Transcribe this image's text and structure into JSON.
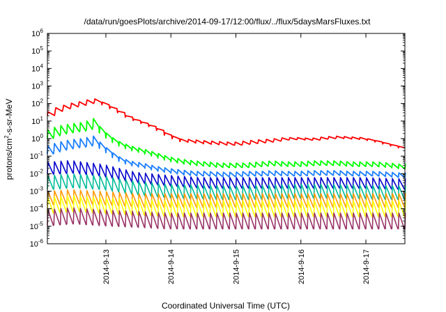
{
  "chart_data": {
    "type": "line",
    "title": "/data/run/goesPlots/archive/2014-09-17/12:00/flux/../flux/5daysMarsFluxes.txt",
    "xlabel": "Coordinated Universal Time (UTC)",
    "ylabel_main": "protons/cm",
    "ylabel_sup": "2",
    "ylabel_rest": "-s-sr-MeV",
    "y_scale": "log",
    "ylim_exp": [
      -6,
      6
    ],
    "y_tick_base": "10",
    "y_tick_exponents": [
      "-6",
      "-5",
      "-4",
      "-3",
      "-2",
      "-1",
      "0",
      "1",
      "2",
      "3",
      "4",
      "5",
      "6"
    ],
    "xlim_days": [
      12.1,
      17.6
    ],
    "x_tick_labels": [
      {
        "label": "2014-9-13",
        "day": 13
      },
      {
        "label": "2014-9-14",
        "day": 14
      },
      {
        "label": "2014-9-15",
        "day": 15
      },
      {
        "label": "2014-9-16",
        "day": 16
      },
      {
        "label": "2014-9-17",
        "day": 17
      }
    ],
    "grid": false,
    "legend": "none",
    "series": [
      {
        "color": "#ff0000",
        "x": [
          12.1,
          12.3,
          12.5,
          12.7,
          12.85,
          13.0,
          13.2,
          13.4,
          13.6,
          13.8,
          14.0,
          14.2,
          14.4,
          14.6,
          14.8,
          15.0,
          15.2,
          15.4,
          15.6,
          15.8,
          16.0,
          16.2,
          16.4,
          16.6,
          16.8,
          17.0,
          17.2,
          17.4,
          17.6
        ],
        "y": [
          20,
          50,
          80,
          110,
          160,
          100,
          40,
          15,
          8,
          4,
          1.5,
          0.8,
          0.7,
          0.6,
          0.55,
          0.5,
          0.6,
          0.7,
          0.8,
          1.0,
          1.0,
          0.9,
          1.1,
          1.2,
          1.1,
          1.0,
          0.7,
          0.45,
          0.3
        ],
        "saw_amp": [
          1.6,
          1.6,
          1.6,
          1.6,
          1.6,
          1.4,
          1.2,
          1.2,
          1.2,
          1.2,
          1.4,
          1.4,
          1.5,
          1.5,
          1.5,
          1.5,
          1.5,
          1.5,
          1.4,
          1.3,
          1.3,
          1.3,
          1.3,
          1.3,
          1.3,
          1.3,
          1.2,
          1.2,
          1.2
        ],
        "saw_step": 0.12
      },
      {
        "color": "#00ff00",
        "x": [
          12.1,
          12.3,
          12.5,
          12.7,
          12.85,
          13.0,
          13.2,
          13.4,
          13.6,
          13.8,
          14.0,
          14.2,
          14.4,
          14.6,
          14.8,
          15.0,
          15.2,
          15.4,
          15.6,
          15.8,
          16.0,
          16.2,
          16.4,
          16.6,
          16.8,
          17.0,
          17.2,
          17.4,
          17.6
        ],
        "y": [
          1.5,
          3,
          4,
          5,
          8,
          2,
          0.6,
          0.3,
          0.2,
          0.12,
          0.07,
          0.05,
          0.04,
          0.035,
          0.03,
          0.03,
          0.03,
          0.035,
          0.04,
          0.035,
          0.035,
          0.04,
          0.04,
          0.04,
          0.035,
          0.035,
          0.035,
          0.03,
          0.025
        ],
        "saw_amp": [
          3,
          3,
          3,
          3,
          3,
          2,
          1.8,
          1.8,
          1.8,
          1.8,
          1.8,
          1.8,
          1.8,
          1.8,
          1.8,
          1.8,
          1.8,
          1.8,
          1.8,
          1.8,
          1.8,
          1.8,
          1.8,
          1.8,
          1.8,
          1.8,
          1.8,
          1.8,
          1.8
        ],
        "saw_step": 0.1
      },
      {
        "color": "#1a7fff",
        "x": [
          12.1,
          12.3,
          12.5,
          12.7,
          12.85,
          13.0,
          13.2,
          13.4,
          13.6,
          13.8,
          14.0,
          14.2,
          14.4,
          14.6,
          14.8,
          15.0,
          15.2,
          15.4,
          15.6,
          15.8,
          16.0,
          16.2,
          16.4,
          16.6,
          16.8,
          17.0,
          17.2,
          17.4,
          17.6
        ],
        "y": [
          0.2,
          0.35,
          0.5,
          0.6,
          0.8,
          0.3,
          0.08,
          0.04,
          0.03,
          0.02,
          0.015,
          0.012,
          0.01,
          0.01,
          0.009,
          0.009,
          0.01,
          0.01,
          0.011,
          0.01,
          0.01,
          0.011,
          0.011,
          0.011,
          0.01,
          0.01,
          0.01,
          0.009,
          0.008
        ],
        "saw_amp": [
          3,
          3,
          3,
          3,
          3,
          2,
          1.8,
          1.8,
          1.8,
          1.8,
          1.8,
          1.8,
          1.8,
          1.8,
          1.8,
          1.8,
          1.8,
          1.8,
          1.8,
          1.8,
          1.8,
          1.8,
          1.8,
          1.8,
          1.8,
          1.8,
          1.8,
          1.8,
          1.8
        ],
        "saw_step": 0.1
      },
      {
        "color": "#0000cc",
        "x": [
          12.1,
          12.5,
          13.0,
          13.5,
          14.0,
          14.5,
          15.0,
          15.5,
          16.0,
          16.5,
          17.0,
          17.6
        ],
        "y": [
          0.02,
          0.025,
          0.015,
          0.006,
          0.004,
          0.003,
          0.003,
          0.003,
          0.003,
          0.003,
          0.003,
          0.0025
        ],
        "saw_amp": [
          5,
          5,
          5,
          4,
          4,
          4,
          4,
          4,
          4,
          4,
          4,
          4
        ],
        "saw_step": 0.1
      },
      {
        "color": "#00bb99",
        "x": [
          12.1,
          12.5,
          13.0,
          13.5,
          14.0,
          14.5,
          15.0,
          15.5,
          16.0,
          16.5,
          17.0,
          17.6
        ],
        "y": [
          0.003,
          0.004,
          0.003,
          0.0015,
          0.001,
          0.0009,
          0.0008,
          0.0009,
          0.001,
          0.001,
          0.0009,
          0.0008
        ],
        "saw_amp": [
          6,
          6,
          6,
          6,
          6,
          6,
          6,
          6,
          6,
          6,
          6,
          6
        ],
        "saw_step": 0.1
      },
      {
        "color": "#ff9900",
        "x": [
          12.1,
          12.5,
          13.0,
          13.5,
          14.0,
          14.5,
          15.0,
          15.5,
          16.0,
          16.5,
          17.0,
          17.6
        ],
        "y": [
          0.0004,
          0.0005,
          0.0004,
          0.0003,
          0.0003,
          0.0003,
          0.0003,
          0.0003,
          0.0003,
          0.0003,
          0.0003,
          0.0003
        ],
        "saw_amp": [
          6,
          6,
          6,
          6,
          6,
          6,
          6,
          6,
          6,
          6,
          6,
          6
        ],
        "saw_step": 0.1
      },
      {
        "color": "#ffff00",
        "x": [
          12.1,
          12.5,
          13.0,
          13.5,
          14.0,
          14.5,
          15.0,
          15.5,
          16.0,
          16.5,
          17.0,
          17.6
        ],
        "y": [
          0.00015,
          0.0002,
          0.00015,
          0.00012,
          0.0001,
          0.0001,
          0.0001,
          0.0001,
          0.0001,
          0.0001,
          0.0001,
          0.0001
        ],
        "saw_amp": [
          8,
          8,
          8,
          8,
          8,
          8,
          8,
          8,
          8,
          8,
          8,
          8
        ],
        "saw_step": 0.1
      },
      {
        "color": "#993366",
        "x": [
          12.1,
          12.5,
          13.0,
          13.5,
          14.0,
          14.5,
          15.0,
          15.5,
          16.0,
          16.5,
          17.0,
          17.6
        ],
        "y": [
          3e-05,
          4e-05,
          3e-05,
          2.5e-05,
          2e-05,
          2e-05,
          2e-05,
          2e-05,
          2e-05,
          2e-05,
          2e-05,
          2e-05
        ],
        "saw_amp": [
          8,
          8,
          8,
          8,
          8,
          8,
          8,
          8,
          8,
          8,
          8,
          8
        ],
        "saw_step": 0.1
      }
    ]
  }
}
